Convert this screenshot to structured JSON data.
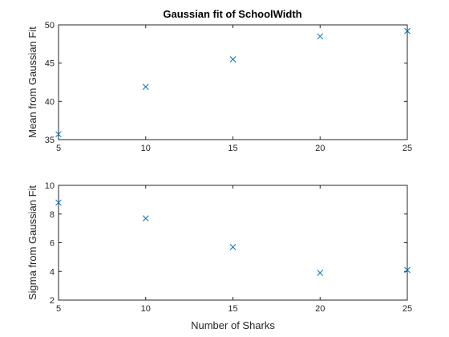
{
  "chart_data": [
    {
      "type": "scatter",
      "title": "Gaussian fit of SchoolWidth",
      "xlabel": "",
      "ylabel": "Mean from Gaussian Fit",
      "xlim": [
        5,
        25
      ],
      "ylim": [
        35,
        50
      ],
      "xticks": [
        5,
        10,
        15,
        20,
        25
      ],
      "yticks": [
        35,
        40,
        45,
        50
      ],
      "marker": "x",
      "color": "#0072BD",
      "x": [
        5,
        10,
        15,
        20,
        25
      ],
      "y": [
        35.7,
        41.9,
        45.5,
        48.5,
        49.2
      ]
    },
    {
      "type": "scatter",
      "title": "",
      "xlabel": "Number of Sharks",
      "ylabel": "Sigma from Gaussian Fit",
      "xlim": [
        5,
        25
      ],
      "ylim": [
        2,
        10
      ],
      "xticks": [
        5,
        10,
        15,
        20,
        25
      ],
      "yticks": [
        2,
        4,
        6,
        8,
        10
      ],
      "marker": "x",
      "color": "#0072BD",
      "x": [
        5,
        10,
        15,
        20,
        25
      ],
      "y": [
        8.8,
        7.7,
        5.7,
        3.9,
        4.1
      ]
    }
  ]
}
